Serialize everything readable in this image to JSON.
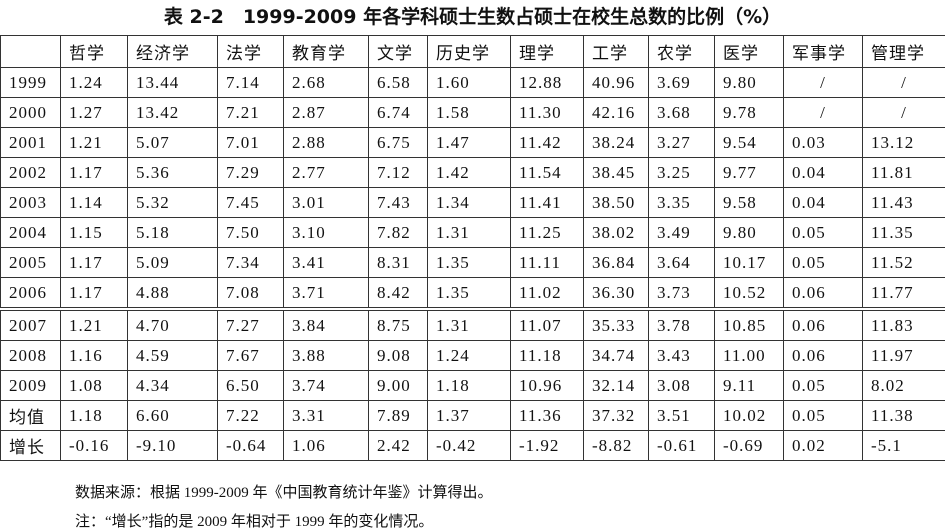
{
  "header": {
    "title": "表 2-2　1999-2009 年各学科硕士生数占硕士在校生总数的比例（%）"
  },
  "table": {
    "columns": [
      "哲学",
      "经济学",
      "法学",
      "教育学",
      "文学",
      "历史学",
      "理学",
      "工学",
      "农学",
      "医学",
      "军事学",
      "管理学"
    ],
    "rows": [
      {
        "label": "1999",
        "values": [
          "1.24",
          "13.44",
          "7.14",
          "2.68",
          "6.58",
          "1.60",
          "12.88",
          "40.96",
          "3.69",
          "9.80",
          "/",
          "/"
        ]
      },
      {
        "label": "2000",
        "values": [
          "1.27",
          "13.42",
          "7.21",
          "2.87",
          "6.74",
          "1.58",
          "11.30",
          "42.16",
          "3.68",
          "9.78",
          "/",
          "/"
        ]
      },
      {
        "label": "2001",
        "values": [
          "1.21",
          "5.07",
          "7.01",
          "2.88",
          "6.75",
          "1.47",
          "11.42",
          "38.24",
          "3.27",
          "9.54",
          "0.03",
          "13.12"
        ]
      },
      {
        "label": "2002",
        "values": [
          "1.17",
          "5.36",
          "7.29",
          "2.77",
          "7.12",
          "1.42",
          "11.54",
          "38.45",
          "3.25",
          "9.77",
          "0.04",
          "11.81"
        ]
      },
      {
        "label": "2003",
        "values": [
          "1.14",
          "5.32",
          "7.45",
          "3.01",
          "7.43",
          "1.34",
          "11.41",
          "38.50",
          "3.35",
          "9.58",
          "0.04",
          "11.43"
        ]
      },
      {
        "label": "2004",
        "values": [
          "1.15",
          "5.18",
          "7.50",
          "3.10",
          "7.82",
          "1.31",
          "11.25",
          "38.02",
          "3.49",
          "9.80",
          "0.05",
          "11.35"
        ]
      },
      {
        "label": "2005",
        "values": [
          "1.17",
          "5.09",
          "7.34",
          "3.41",
          "8.31",
          "1.35",
          "11.11",
          "36.84",
          "3.64",
          "10.17",
          "0.05",
          "11.52"
        ]
      },
      {
        "label": "2006",
        "values": [
          "1.17",
          "4.88",
          "7.08",
          "3.71",
          "8.42",
          "1.35",
          "11.02",
          "36.30",
          "3.73",
          "10.52",
          "0.06",
          "11.77"
        ]
      },
      {
        "label": "2007",
        "values": [
          "1.21",
          "4.70",
          "7.27",
          "3.84",
          "8.75",
          "1.31",
          "11.07",
          "35.33",
          "3.78",
          "10.85",
          "0.06",
          "11.83"
        ]
      },
      {
        "label": "2008",
        "values": [
          "1.16",
          "4.59",
          "7.67",
          "3.88",
          "9.08",
          "1.24",
          "11.18",
          "34.74",
          "3.43",
          "11.00",
          "0.06",
          "11.97"
        ]
      },
      {
        "label": "2009",
        "values": [
          "1.08",
          "4.34",
          "6.50",
          "3.74",
          "9.00",
          "1.18",
          "10.96",
          "32.14",
          "3.08",
          "9.11",
          "0.05",
          "8.02"
        ]
      },
      {
        "label": "均值",
        "values": [
          "1.18",
          "6.60",
          "7.22",
          "3.31",
          "7.89",
          "1.37",
          "11.36",
          "37.32",
          "3.51",
          "10.02",
          "0.05",
          "11.38"
        ]
      },
      {
        "label": "增长",
        "values": [
          "-0.16",
          "-9.10",
          "-0.64",
          "1.06",
          "2.42",
          "-0.42",
          "-1.92",
          "-8.82",
          "-0.61",
          "-0.69",
          "0.02",
          "-5.1"
        ]
      }
    ]
  },
  "notes": [
    "数据来源：根据 1999-2009 年《中国教育统计年鉴》计算得出。",
    "注：“增长”指的是 2009 年相对于 1999 年的变化情况。"
  ]
}
